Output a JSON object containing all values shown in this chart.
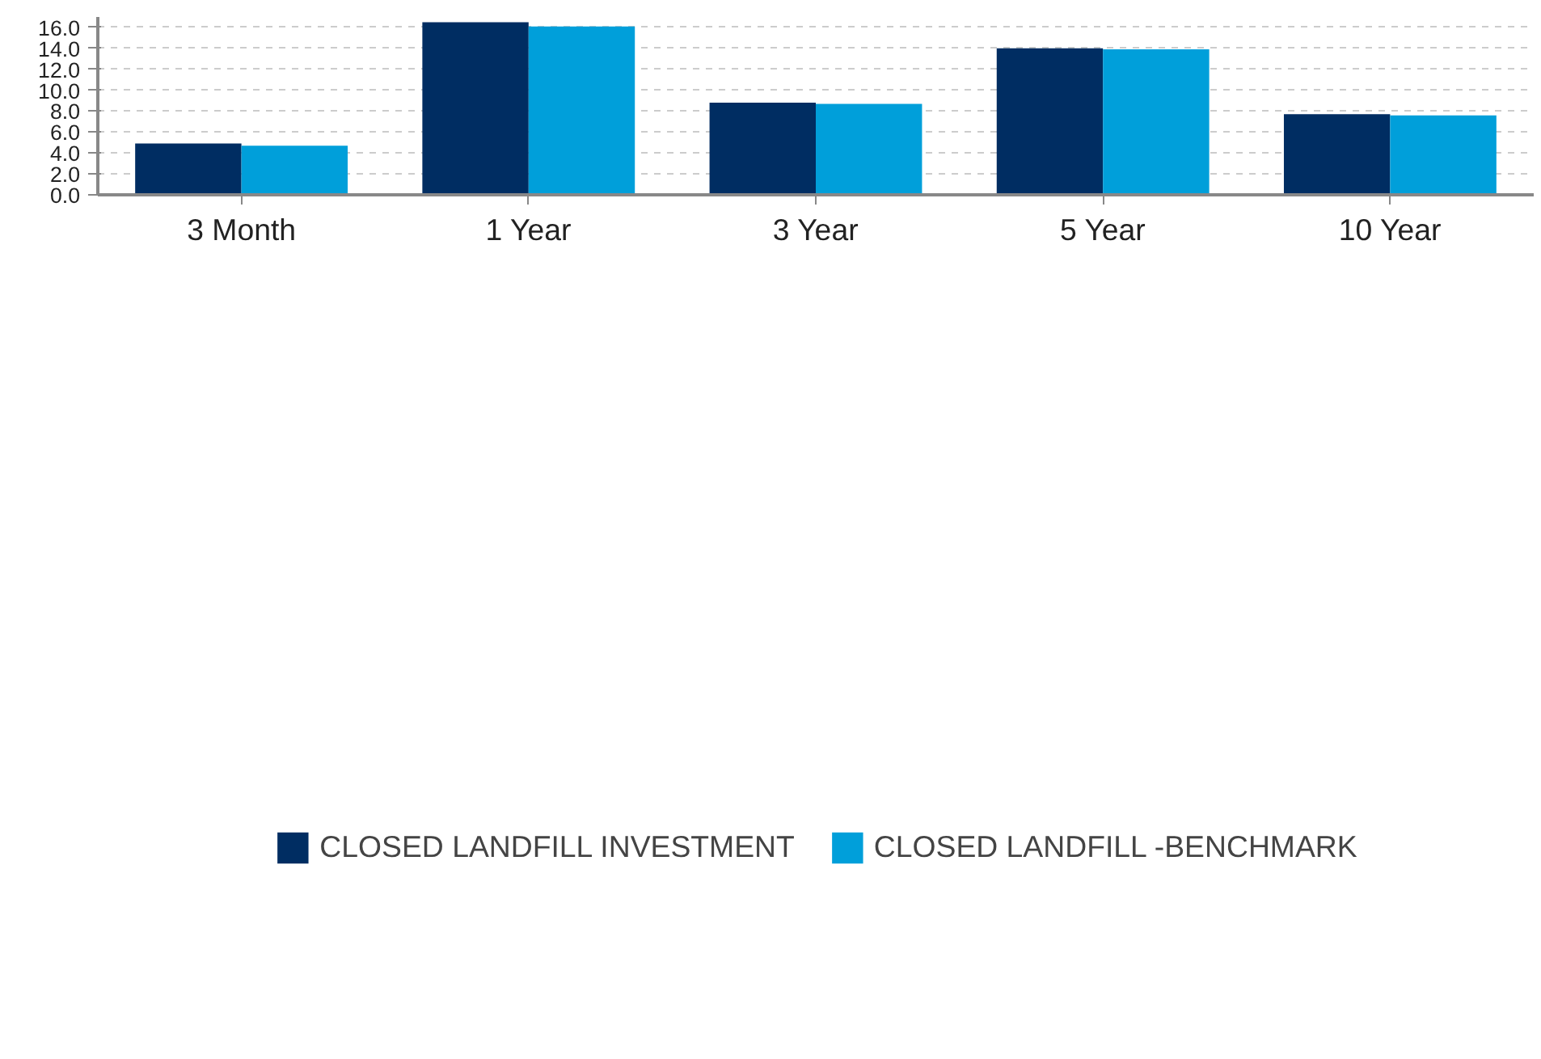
{
  "chart_data": {
    "type": "bar",
    "categories": [
      "3 Month",
      "1 Year",
      "3 Year",
      "5 Year",
      "10 Year"
    ],
    "series": [
      {
        "name": "CLOSED LANDFILL INVESTMENT",
        "color": "#002d62",
        "values": [
          4.9,
          16.5,
          8.8,
          14.0,
          7.7
        ]
      },
      {
        "name": "CLOSED LANDFILL -BENCHMARK",
        "color": "#009fda",
        "values": [
          4.7,
          16.1,
          8.7,
          13.9,
          7.6
        ]
      }
    ],
    "ylim": [
      0,
      17
    ],
    "yticks": [
      {
        "value": 0,
        "label": "0.0"
      },
      {
        "value": 2,
        "label": "2.0"
      },
      {
        "value": 4,
        "label": "4.0"
      },
      {
        "value": 6,
        "label": "6.0"
      },
      {
        "value": 8,
        "label": "8.0"
      },
      {
        "value": 10,
        "label": "10.0"
      },
      {
        "value": 12,
        "label": "12.0"
      },
      {
        "value": 14,
        "label": "14.0"
      },
      {
        "value": 16,
        "label": "16.0"
      }
    ],
    "grid": "y",
    "legend": "bottom"
  }
}
